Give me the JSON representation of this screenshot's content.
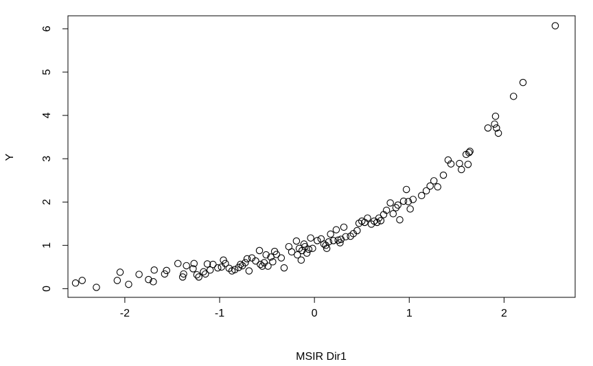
{
  "chart_data": {
    "type": "scatter",
    "title": "",
    "xlabel": "MSIR Dir1",
    "ylabel": "Y",
    "xlim": [
      -2.6,
      2.75
    ],
    "ylim": [
      -0.2,
      6.3
    ],
    "xticks": [
      -2,
      -1,
      0,
      1,
      2
    ],
    "yticks": [
      0,
      1,
      2,
      3,
      4,
      5,
      6
    ],
    "xtick_labels": [
      "-2",
      "-1",
      "0",
      "1",
      "2"
    ],
    "ytick_labels": [
      "0",
      "1",
      "2",
      "3",
      "4",
      "5",
      "6"
    ],
    "marker": "open-circle",
    "grid": false,
    "colors": {
      "marker": "#000000",
      "frame": "#000000",
      "background": "#ffffff"
    },
    "points": [
      [
        -2.52,
        0.13
      ],
      [
        -2.45,
        0.19
      ],
      [
        -2.3,
        0.03
      ],
      [
        -2.08,
        0.19
      ],
      [
        -2.05,
        0.38
      ],
      [
        -1.96,
        0.1
      ],
      [
        -1.85,
        0.33
      ],
      [
        -1.75,
        0.21
      ],
      [
        -1.7,
        0.16
      ],
      [
        -1.69,
        0.43
      ],
      [
        -1.58,
        0.34
      ],
      [
        -1.56,
        0.42
      ],
      [
        -1.44,
        0.58
      ],
      [
        -1.39,
        0.27
      ],
      [
        -1.38,
        0.34
      ],
      [
        -1.35,
        0.53
      ],
      [
        -1.28,
        0.46
      ],
      [
        -1.27,
        0.58
      ],
      [
        -1.24,
        0.32
      ],
      [
        -1.22,
        0.27
      ],
      [
        -1.17,
        0.39
      ],
      [
        -1.15,
        0.34
      ],
      [
        -1.13,
        0.57
      ],
      [
        -1.1,
        0.43
      ],
      [
        -1.07,
        0.56
      ],
      [
        -1.02,
        0.48
      ],
      [
        -0.98,
        0.5
      ],
      [
        -0.96,
        0.66
      ],
      [
        -0.94,
        0.58
      ],
      [
        -0.9,
        0.47
      ],
      [
        -0.87,
        0.41
      ],
      [
        -0.84,
        0.44
      ],
      [
        -0.8,
        0.49
      ],
      [
        -0.78,
        0.56
      ],
      [
        -0.76,
        0.53
      ],
      [
        -0.73,
        0.6
      ],
      [
        -0.71,
        0.69
      ],
      [
        -0.69,
        0.41
      ],
      [
        -0.66,
        0.71
      ],
      [
        -0.62,
        0.64
      ],
      [
        -0.58,
        0.88
      ],
      [
        -0.57,
        0.56
      ],
      [
        -0.55,
        0.52
      ],
      [
        -0.53,
        0.6
      ],
      [
        -0.51,
        0.78
      ],
      [
        -0.49,
        0.52
      ],
      [
        -0.46,
        0.73
      ],
      [
        -0.44,
        0.62
      ],
      [
        -0.42,
        0.86
      ],
      [
        -0.4,
        0.79
      ],
      [
        -0.35,
        0.71
      ],
      [
        -0.32,
        0.48
      ],
      [
        -0.27,
        0.97
      ],
      [
        -0.24,
        0.85
      ],
      [
        -0.19,
        1.1
      ],
      [
        -0.18,
        0.78
      ],
      [
        -0.16,
        0.93
      ],
      [
        -0.14,
        0.66
      ],
      [
        -0.13,
        0.88
      ],
      [
        -0.11,
        1.03
      ],
      [
        -0.1,
        0.97
      ],
      [
        -0.08,
        0.82
      ],
      [
        -0.06,
        0.91
      ],
      [
        -0.04,
        1.17
      ],
      [
        -0.02,
        0.93
      ],
      [
        0.03,
        1.11
      ],
      [
        0.07,
        1.15
      ],
      [
        0.1,
        1.03
      ],
      [
        0.12,
        1.0
      ],
      [
        0.13,
        0.93
      ],
      [
        0.15,
        1.08
      ],
      [
        0.17,
        1.26
      ],
      [
        0.2,
        1.11
      ],
      [
        0.23,
        1.36
      ],
      [
        0.25,
        1.12
      ],
      [
        0.27,
        1.06
      ],
      [
        0.28,
        1.14
      ],
      [
        0.31,
        1.42
      ],
      [
        0.33,
        1.2
      ],
      [
        0.38,
        1.21
      ],
      [
        0.41,
        1.27
      ],
      [
        0.45,
        1.34
      ],
      [
        0.47,
        1.51
      ],
      [
        0.5,
        1.56
      ],
      [
        0.53,
        1.53
      ],
      [
        0.56,
        1.63
      ],
      [
        0.6,
        1.49
      ],
      [
        0.63,
        1.56
      ],
      [
        0.66,
        1.53
      ],
      [
        0.68,
        1.63
      ],
      [
        0.7,
        1.57
      ],
      [
        0.73,
        1.71
      ],
      [
        0.76,
        1.81
      ],
      [
        0.8,
        1.98
      ],
      [
        0.83,
        1.73
      ],
      [
        0.86,
        1.87
      ],
      [
        0.88,
        1.93
      ],
      [
        0.9,
        1.59
      ],
      [
        0.94,
        2.02
      ],
      [
        0.97,
        2.29
      ],
      [
        0.99,
        2.01
      ],
      [
        1.01,
        1.84
      ],
      [
        1.04,
        2.06
      ],
      [
        1.13,
        2.15
      ],
      [
        1.18,
        2.26
      ],
      [
        1.22,
        2.37
      ],
      [
        1.26,
        2.49
      ],
      [
        1.3,
        2.35
      ],
      [
        1.36,
        2.62
      ],
      [
        1.41,
        2.97
      ],
      [
        1.44,
        2.88
      ],
      [
        1.53,
        2.89
      ],
      [
        1.55,
        2.75
      ],
      [
        1.6,
        3.1
      ],
      [
        1.62,
        2.87
      ],
      [
        1.63,
        3.14
      ],
      [
        1.64,
        3.17
      ],
      [
        1.83,
        3.71
      ],
      [
        1.9,
        3.8
      ],
      [
        1.91,
        3.98
      ],
      [
        1.92,
        3.71
      ],
      [
        1.94,
        3.59
      ],
      [
        2.1,
        4.44
      ],
      [
        2.2,
        4.76
      ],
      [
        2.54,
        6.07
      ]
    ]
  }
}
